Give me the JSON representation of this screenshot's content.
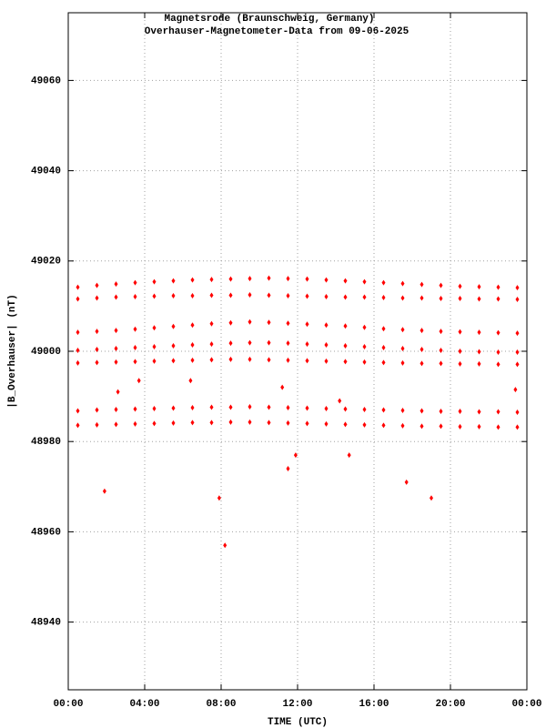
{
  "chart_data": {
    "type": "scatter",
    "title": "Magnetsrode (Braunschweig, Germany)",
    "subtitle": "Overhauser-Magnetometer-Data from 09-06-2025",
    "x_label": "TIME (UTC)",
    "y_label": "|B_Overhauser| (nT)",
    "color": "#ff0000",
    "grid": true,
    "xlim": [
      0,
      24
    ],
    "ylim": [
      48925,
      49075
    ],
    "xticks": [
      {
        "value": 0,
        "label": "00:00"
      },
      {
        "value": 4,
        "label": "04:00"
      },
      {
        "value": 8,
        "label": "08:00"
      },
      {
        "value": 12,
        "label": "12:00"
      },
      {
        "value": 16,
        "label": "16:00"
      },
      {
        "value": 20,
        "label": "20:00"
      },
      {
        "value": 24,
        "label": "00:00"
      }
    ],
    "yticks": [
      48940,
      48960,
      48980,
      49000,
      49020,
      49040,
      49060
    ],
    "x": [
      0.5,
      1.5,
      2.5,
      3.5,
      4.5,
      5.5,
      6.5,
      7.5,
      8.5,
      9.5,
      10.5,
      11.5,
      12.5,
      13.5,
      14.5,
      15.5,
      16.5,
      17.5,
      18.5,
      19.5,
      20.5,
      21.5,
      22.5,
      23.5,
      0.5,
      1.5,
      2.5,
      3.5,
      4.5,
      5.5,
      6.5,
      7.5,
      8.5,
      9.5,
      10.5,
      11.5,
      12.5,
      13.5,
      14.5,
      15.5,
      16.5,
      17.5,
      18.5,
      19.5,
      20.5,
      21.5,
      22.5,
      23.5,
      0.5,
      1.5,
      2.5,
      3.5,
      4.5,
      5.5,
      6.5,
      7.5,
      8.5,
      9.5,
      10.5,
      11.5,
      12.5,
      13.5,
      14.5,
      15.5,
      16.5,
      17.5,
      18.5,
      19.5,
      20.5,
      21.5,
      22.5,
      23.5,
      0.5,
      1.5,
      2.5,
      3.5,
      4.5,
      5.5,
      6.5,
      7.5,
      8.5,
      9.5,
      10.5,
      11.5,
      12.5,
      13.5,
      14.5,
      15.5,
      16.5,
      17.5,
      18.5,
      19.5,
      20.5,
      21.5,
      22.5,
      23.5,
      0.5,
      1.5,
      2.5,
      3.5,
      4.5,
      5.5,
      6.5,
      7.5,
      8.5,
      9.5,
      10.5,
      11.5,
      12.5,
      13.5,
      14.5,
      15.5,
      16.5,
      17.5,
      18.5,
      19.5,
      20.5,
      21.5,
      22.5,
      23.5,
      0.5,
      1.5,
      2.5,
      3.5,
      4.5,
      5.5,
      6.5,
      7.5,
      8.5,
      9.5,
      10.5,
      11.5,
      12.5,
      13.5,
      14.5,
      15.5,
      16.5,
      17.5,
      18.5,
      19.5,
      20.5,
      21.5,
      22.5,
      23.5,
      0.5,
      1.5,
      2.5,
      3.5,
      4.5,
      5.5,
      6.5,
      7.5,
      8.5,
      9.5,
      10.5,
      11.5,
      12.5,
      13.5,
      14.5,
      15.5,
      16.5,
      17.5,
      18.5,
      19.5,
      20.5,
      21.5,
      22.5,
      23.5,
      1.9,
      7.9,
      8.2,
      11.5,
      11.9,
      14.7,
      17.7,
      19,
      2.6,
      3.7,
      6.4,
      11.2,
      14.2,
      23.4
    ],
    "values": [
      49014.2,
      49014.6,
      49014.9,
      49015.2,
      49015.4,
      49015.6,
      49015.8,
      49015.9,
      49016,
      49016.1,
      49016.2,
      49016.1,
      49016,
      49015.8,
      49015.6,
      49015.4,
      49015.2,
      49015,
      49014.8,
      49014.6,
      49014.4,
      49014.3,
      49014.2,
      49014.1,
      49011.6,
      49011.8,
      49012,
      49012.1,
      49012.2,
      49012.3,
      49012.3,
      49012.4,
      49012.4,
      49012.5,
      49012.4,
      49012.3,
      49012.2,
      49012.1,
      49012,
      49012,
      49011.9,
      49011.8,
      49011.8,
      49011.7,
      49011.7,
      49011.6,
      49011.6,
      49011.5,
      49004.2,
      49004.4,
      49004.6,
      49004.9,
      49005.2,
      49005.5,
      49005.8,
      49006.1,
      49006.3,
      49006.5,
      49006.4,
      49006.2,
      49006,
      49005.8,
      49005.6,
      49005.3,
      49005,
      49004.8,
      49004.6,
      49004.4,
      49004.3,
      49004.2,
      49004.1,
      49004,
      49000.2,
      49000.4,
      49000.6,
      49000.8,
      49001,
      49001.2,
      49001.4,
      49001.6,
      49001.8,
      49001.9,
      49001.9,
      49001.8,
      49001.6,
      49001.4,
      49001.2,
      49001,
      49000.8,
      49000.6,
      49000.4,
      49000.2,
      49000,
      48999.9,
      48999.8,
      48999.8,
      48997.4,
      48997.5,
      48997.6,
      48997.7,
      48997.8,
      48997.9,
      48998,
      48998.1,
      48998.2,
      48998.2,
      48998.1,
      48998,
      48997.9,
      48997.8,
      48997.7,
      48997.6,
      48997.5,
      48997.4,
      48997.3,
      48997.3,
      48997.2,
      48997.2,
      48997.1,
      48997.1,
      48986.8,
      48987,
      48987.1,
      48987.2,
      48987.3,
      48987.4,
      48987.5,
      48987.6,
      48987.6,
      48987.7,
      48987.6,
      48987.5,
      48987.4,
      48987.3,
      48987.2,
      48987.1,
      48987,
      48986.9,
      48986.8,
      48986.7,
      48986.7,
      48986.6,
      48986.6,
      48986.5,
      48983.6,
      48983.7,
      48983.8,
      48983.9,
      48984,
      48984.1,
      48984.2,
      48984.2,
      48984.3,
      48984.3,
      48984.2,
      48984.1,
      48984,
      48983.9,
      48983.8,
      48983.7,
      48983.6,
      48983.5,
      48983.4,
      48983.4,
      48983.3,
      48983.3,
      48983.2,
      48983.2,
      48969,
      48967.5,
      48957,
      48974,
      48977,
      48977,
      48971,
      48967.5,
      48991,
      48993.5,
      48993.5,
      48992,
      48989,
      48991.5
    ]
  }
}
